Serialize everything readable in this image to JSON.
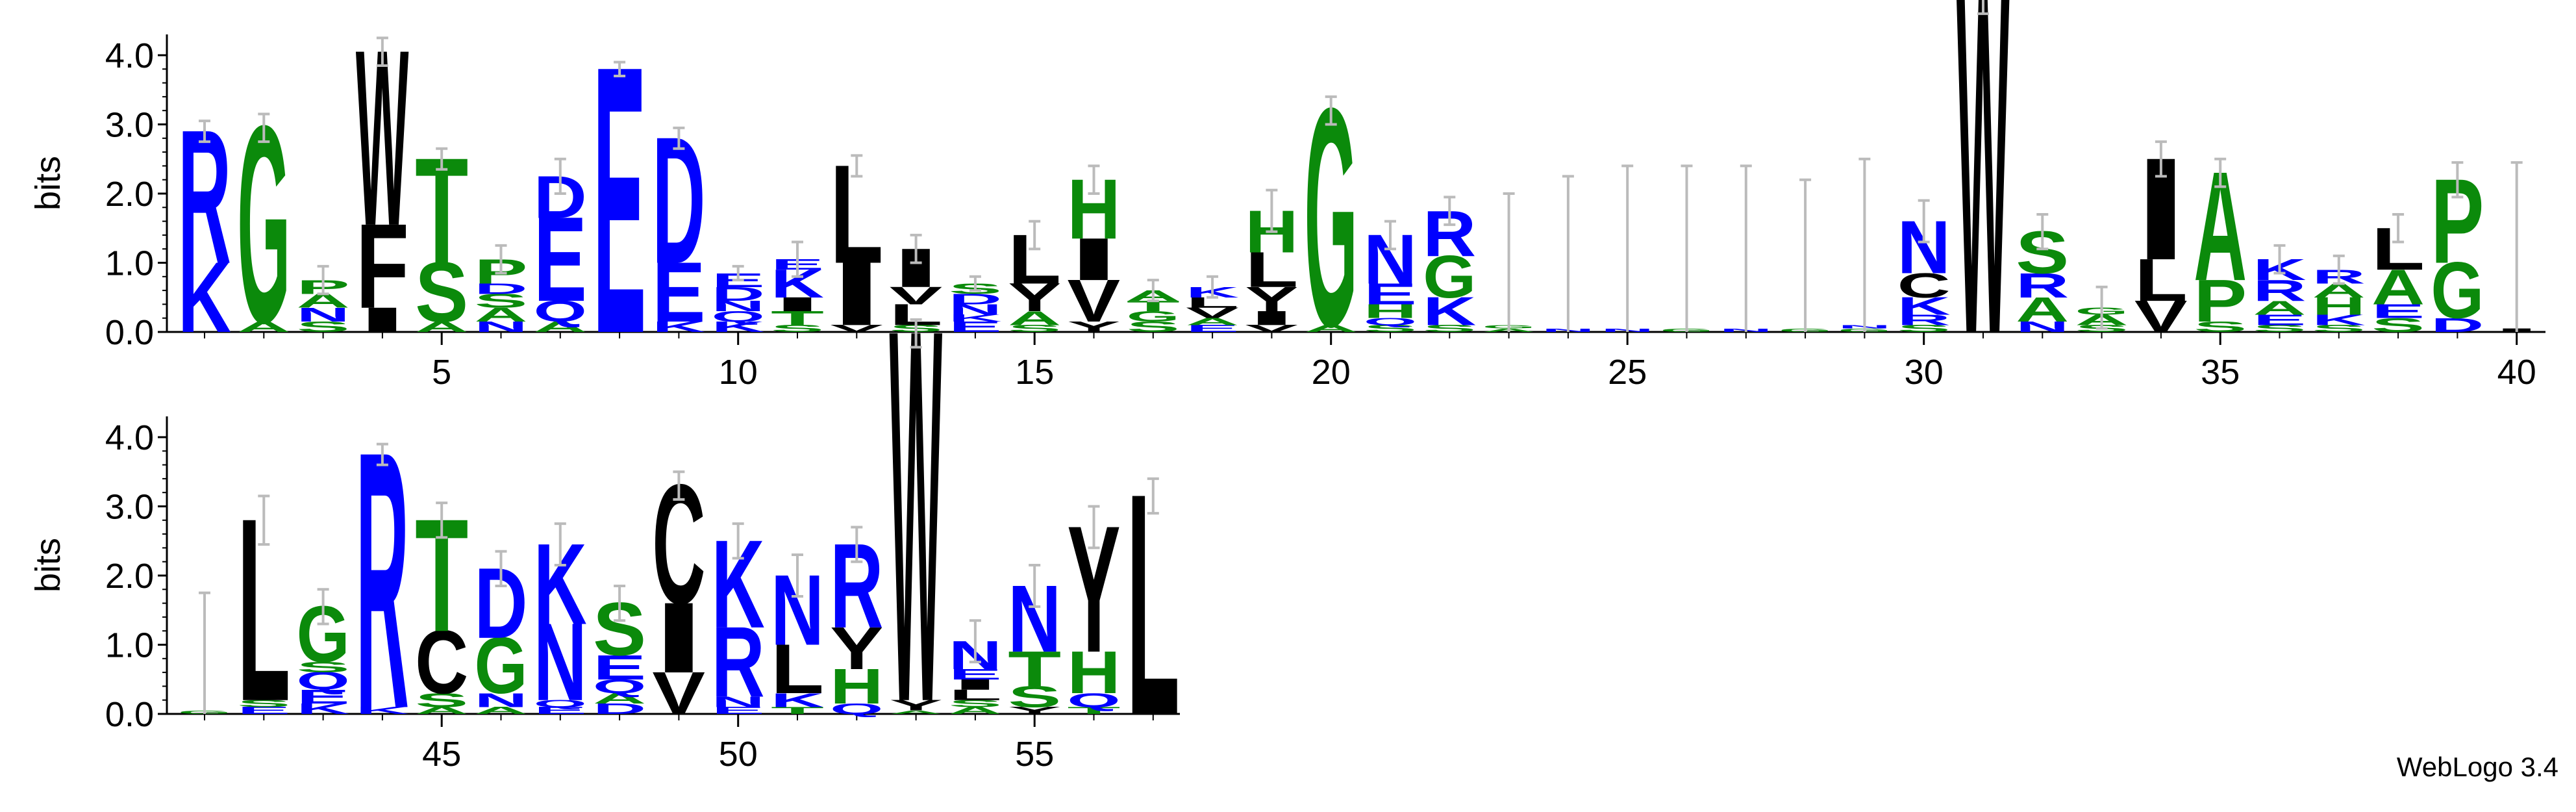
{
  "chart_data": [
    {
      "type": "logo",
      "ylabel": "bits",
      "x": [
        1,
        2,
        3,
        4,
        5,
        6,
        7,
        8,
        9,
        10,
        11,
        12,
        13,
        14,
        15,
        16,
        17,
        18,
        19,
        20,
        21,
        22,
        23,
        24,
        25,
        26,
        27,
        28,
        29,
        30,
        31,
        32,
        33,
        34,
        35,
        36,
        37,
        38,
        39,
        40
      ],
      "xticks": [
        5,
        10,
        15,
        20,
        25,
        30,
        35,
        40
      ],
      "ylim": [
        0,
        4.3
      ],
      "yticks": [
        {
          "value": 0,
          "label": "0.0"
        },
        {
          "value": 1,
          "label": "1.0"
        },
        {
          "value": 2,
          "label": "2.0"
        },
        {
          "value": 3,
          "label": "3.0"
        },
        {
          "value": 4,
          "label": "4.0"
        }
      ],
      "stacks": [
        [
          {
            "letter": "K",
            "bits": 1.0
          },
          {
            "letter": "R",
            "bits": 1.9
          }
        ],
        [
          {
            "letter": "A",
            "bits": 0.15
          },
          {
            "letter": "G",
            "bits": 2.8
          }
        ],
        [
          {
            "letter": "S",
            "bits": 0.15
          },
          {
            "letter": "N",
            "bits": 0.2
          },
          {
            "letter": "A",
            "bits": 0.2
          },
          {
            "letter": "P",
            "bits": 0.2
          }
        ],
        [
          {
            "letter": "I",
            "bits": 0.35
          },
          {
            "letter": "F",
            "bits": 1.2
          },
          {
            "letter": "W",
            "bits": 2.5
          }
        ],
        [
          {
            "letter": "A",
            "bits": 0.15
          },
          {
            "letter": "S",
            "bits": 0.85
          },
          {
            "letter": "T",
            "bits": 1.5
          }
        ],
        [
          {
            "letter": "N",
            "bits": 0.15
          },
          {
            "letter": "A",
            "bits": 0.2
          },
          {
            "letter": "S",
            "bits": 0.2
          },
          {
            "letter": "D",
            "bits": 0.15
          },
          {
            "letter": "P",
            "bits": 0.35
          }
        ],
        [
          {
            "letter": "A",
            "bits": 0.15
          },
          {
            "letter": "Q",
            "bits": 0.3
          },
          {
            "letter": "E",
            "bits": 1.2
          },
          {
            "letter": "D",
            "bits": 0.6
          }
        ],
        [
          {
            "letter": "E",
            "bits": 3.8
          }
        ],
        [
          {
            "letter": "K",
            "bits": 0.15
          },
          {
            "letter": "E",
            "bits": 0.85
          },
          {
            "letter": "D",
            "bits": 1.8
          }
        ],
        [
          {
            "letter": "K",
            "bits": 0.15
          },
          {
            "letter": "Q",
            "bits": 0.15
          },
          {
            "letter": "N",
            "bits": 0.15
          },
          {
            "letter": "D",
            "bits": 0.2
          },
          {
            "letter": "E",
            "bits": 0.2
          }
        ],
        [
          {
            "letter": "S",
            "bits": 0.1
          },
          {
            "letter": "T",
            "bits": 0.2
          },
          {
            "letter": "I",
            "bits": 0.2
          },
          {
            "letter": "K",
            "bits": 0.4
          },
          {
            "letter": "E",
            "bits": 0.15
          }
        ],
        [
          {
            "letter": "V",
            "bits": 0.1
          },
          {
            "letter": "I",
            "bits": 0.9
          },
          {
            "letter": "L",
            "bits": 1.4
          }
        ],
        [
          {
            "letter": "S",
            "bits": 0.1
          },
          {
            "letter": "L",
            "bits": 0.3
          },
          {
            "letter": "V",
            "bits": 0.25
          },
          {
            "letter": "I",
            "bits": 0.55
          }
        ],
        [
          {
            "letter": "E",
            "bits": 0.15
          },
          {
            "letter": "K",
            "bits": 0.1
          },
          {
            "letter": "N",
            "bits": 0.15
          },
          {
            "letter": "D",
            "bits": 0.15
          },
          {
            "letter": "S",
            "bits": 0.15
          }
        ],
        [
          {
            "letter": "S",
            "bits": 0.1
          },
          {
            "letter": "A",
            "bits": 0.2
          },
          {
            "letter": "Y",
            "bits": 0.4
          },
          {
            "letter": "L",
            "bits": 0.7
          }
        ],
        [
          {
            "letter": "Y",
            "bits": 0.15
          },
          {
            "letter": "V",
            "bits": 0.6
          },
          {
            "letter": "I",
            "bits": 0.6
          },
          {
            "letter": "H",
            "bits": 0.85
          }
        ],
        [
          {
            "letter": "S",
            "bits": 0.15
          },
          {
            "letter": "G",
            "bits": 0.15
          },
          {
            "letter": "T",
            "bits": 0.15
          },
          {
            "letter": "A",
            "bits": 0.15
          }
        ],
        [
          {
            "letter": "E",
            "bits": 0.1
          },
          {
            "letter": "A",
            "bits": 0.1
          },
          {
            "letter": "V",
            "bits": 0.15
          },
          {
            "letter": "L",
            "bits": 0.15
          },
          {
            "letter": "K",
            "bits": 0.15
          }
        ],
        [
          {
            "letter": "V",
            "bits": 0.1
          },
          {
            "letter": "I",
            "bits": 0.2
          },
          {
            "letter": "Y",
            "bits": 0.35
          },
          {
            "letter": "L",
            "bits": 0.5
          },
          {
            "letter": "H",
            "bits": 0.6
          }
        ],
        [
          {
            "letter": "A",
            "bits": 0.1
          },
          {
            "letter": "G",
            "bits": 3.1
          }
        ],
        [
          {
            "letter": "S",
            "bits": 0.1
          },
          {
            "letter": "Q",
            "bits": 0.1
          },
          {
            "letter": "H",
            "bits": 0.2
          },
          {
            "letter": "E",
            "bits": 0.3
          },
          {
            "letter": "N",
            "bits": 0.7
          }
        ],
        [
          {
            "letter": "S",
            "bits": 0.1
          },
          {
            "letter": "K",
            "bits": 0.4
          },
          {
            "letter": "G",
            "bits": 0.6
          },
          {
            "letter": "R",
            "bits": 0.65
          }
        ],
        [
          {
            "letter": "A",
            "bits": 0.05
          },
          {
            "letter": "G",
            "bits": 0.05
          }
        ],
        [
          {
            "letter": "N",
            "bits": 0.05
          }
        ],
        [
          {
            "letter": "N",
            "bits": 0.05
          }
        ],
        [
          {
            "letter": "G",
            "bits": 0.05
          }
        ],
        [
          {
            "letter": "N",
            "bits": 0.05
          }
        ],
        [
          {
            "letter": "G",
            "bits": 0.05
          }
        ],
        [
          {
            "letter": "G",
            "bits": 0.05
          },
          {
            "letter": "N",
            "bits": 0.05
          }
        ],
        [
          {
            "letter": "S",
            "bits": 0.1
          },
          {
            "letter": "R",
            "bits": 0.15
          },
          {
            "letter": "K",
            "bits": 0.25
          },
          {
            "letter": "C",
            "bits": 0.35
          },
          {
            "letter": "N",
            "bits": 0.75
          }
        ],
        [
          {
            "letter": "W",
            "bits": 4.8
          }
        ],
        [
          {
            "letter": "N",
            "bits": 0.15
          },
          {
            "letter": "A",
            "bits": 0.35
          },
          {
            "letter": "R",
            "bits": 0.35
          },
          {
            "letter": "S",
            "bits": 0.6
          }
        ],
        [
          {
            "letter": "S",
            "bits": 0.1
          },
          {
            "letter": "A",
            "bits": 0.15
          },
          {
            "letter": "G",
            "bits": 0.1
          }
        ],
        [
          {
            "letter": "V",
            "bits": 0.45
          },
          {
            "letter": "L",
            "bits": 0.6
          },
          {
            "letter": "I",
            "bits": 1.45
          }
        ],
        [
          {
            "letter": "S",
            "bits": 0.15
          },
          {
            "letter": "P",
            "bits": 0.6
          },
          {
            "letter": "A",
            "bits": 1.55
          }
        ],
        [
          {
            "letter": "S",
            "bits": 0.1
          },
          {
            "letter": "E",
            "bits": 0.15
          },
          {
            "letter": "A",
            "bits": 0.2
          },
          {
            "letter": "R",
            "bits": 0.3
          },
          {
            "letter": "K",
            "bits": 0.3
          }
        ],
        [
          {
            "letter": "S",
            "bits": 0.1
          },
          {
            "letter": "K",
            "bits": 0.15
          },
          {
            "letter": "H",
            "bits": 0.25
          },
          {
            "letter": "A",
            "bits": 0.2
          },
          {
            "letter": "R",
            "bits": 0.2
          }
        ],
        [
          {
            "letter": "S",
            "bits": 0.2
          },
          {
            "letter": "E",
            "bits": 0.2
          },
          {
            "letter": "A",
            "bits": 0.5
          },
          {
            "letter": "L",
            "bits": 0.6
          }
        ],
        [
          {
            "letter": "D",
            "bits": 0.2
          },
          {
            "letter": "G",
            "bits": 0.8
          },
          {
            "letter": "P",
            "bits": 1.2
          }
        ],
        [
          {
            "letter": "I",
            "bits": 0.05
          }
        ]
      ],
      "errors": [
        0.15,
        0.2,
        0.2,
        0.2,
        0.15,
        0.2,
        0.25,
        0.1,
        0.15,
        0.1,
        0.25,
        0.15,
        0.2,
        0.1,
        0.2,
        0.2,
        0.15,
        0.15,
        0.3,
        0.2,
        0.2,
        0.2,
        1.9,
        2.2,
        2.35,
        2.35,
        2.35,
        2.15,
        2.4,
        0.3,
        0.2,
        0.25,
        0.3,
        0.25,
        0.2,
        0.2,
        0.2,
        0.2,
        0.25,
        2.4
      ]
    },
    {
      "type": "logo",
      "ylabel": "bits",
      "x": [
        41,
        42,
        43,
        44,
        45,
        46,
        47,
        48,
        49,
        50,
        51,
        52,
        53,
        54,
        55,
        56,
        57
      ],
      "xticks": [
        45,
        50,
        55
      ],
      "ylim": [
        0,
        4.3
      ],
      "yticks": [
        {
          "value": 0,
          "label": "0.0"
        },
        {
          "value": 1,
          "label": "1.0"
        },
        {
          "value": 2,
          "label": "2.0"
        },
        {
          "value": 3,
          "label": "3.0"
        },
        {
          "value": 4,
          "label": "4.0"
        }
      ],
      "stacks": [
        [
          {
            "letter": "G",
            "bits": 0.05
          }
        ],
        [
          {
            "letter": "E",
            "bits": 0.1
          },
          {
            "letter": "S",
            "bits": 0.1
          },
          {
            "letter": "L",
            "bits": 2.6
          }
        ],
        [
          {
            "letter": "K",
            "bits": 0.15
          },
          {
            "letter": "E",
            "bits": 0.2
          },
          {
            "letter": "Q",
            "bits": 0.25
          },
          {
            "letter": "S",
            "bits": 0.15
          },
          {
            "letter": "G",
            "bits": 0.8
          }
        ],
        [
          {
            "letter": "K",
            "bits": 0.1
          },
          {
            "letter": "R",
            "bits": 3.65
          }
        ],
        [
          {
            "letter": "A",
            "bits": 0.1
          },
          {
            "letter": "S",
            "bits": 0.2
          },
          {
            "letter": "C",
            "bits": 0.9
          },
          {
            "letter": "T",
            "bits": 1.6
          }
        ],
        [
          {
            "letter": "A",
            "bits": 0.1
          },
          {
            "letter": "N",
            "bits": 0.2
          },
          {
            "letter": "G",
            "bits": 0.8
          },
          {
            "letter": "D",
            "bits": 1.0
          }
        ],
        [
          {
            "letter": "E",
            "bits": 0.1
          },
          {
            "letter": "Q",
            "bits": 0.1
          },
          {
            "letter": "N",
            "bits": 1.1
          },
          {
            "letter": "K",
            "bits": 1.15
          }
        ],
        [
          {
            "letter": "D",
            "bits": 0.15
          },
          {
            "letter": "A",
            "bits": 0.15
          },
          {
            "letter": "Q",
            "bits": 0.2
          },
          {
            "letter": "E",
            "bits": 0.35
          },
          {
            "letter": "S",
            "bits": 0.75
          }
        ],
        [
          {
            "letter": "V",
            "bits": 0.6
          },
          {
            "letter": "I",
            "bits": 1.0
          },
          {
            "letter": "C",
            "bits": 1.7
          }
        ],
        [
          {
            "letter": "E",
            "bits": 0.1
          },
          {
            "letter": "N",
            "bits": 0.15
          },
          {
            "letter": "R",
            "bits": 1.0
          },
          {
            "letter": "K",
            "bits": 1.25
          }
        ],
        [
          {
            "letter": "T",
            "bits": 0.1
          },
          {
            "letter": "K",
            "bits": 0.2
          },
          {
            "letter": "L",
            "bits": 0.7
          },
          {
            "letter": "N",
            "bits": 1.0
          }
        ],
        [
          {
            "letter": "Q",
            "bits": 0.15
          },
          {
            "letter": "H",
            "bits": 0.5
          },
          {
            "letter": "Y",
            "bits": 0.6
          },
          {
            "letter": "R",
            "bits": 1.2
          }
        ],
        [
          {
            "letter": "A",
            "bits": 0.05
          },
          {
            "letter": "Y",
            "bits": 0.15
          },
          {
            "letter": "W",
            "bits": 5.3
          }
        ],
        [
          {
            "letter": "A",
            "bits": 0.1
          },
          {
            "letter": "S",
            "bits": 0.1
          },
          {
            "letter": "L",
            "bits": 0.15
          },
          {
            "letter": "I",
            "bits": 0.15
          },
          {
            "letter": "E",
            "bits": 0.15
          },
          {
            "letter": "N",
            "bits": 0.4
          }
        ],
        [
          {
            "letter": "Y",
            "bits": 0.1
          },
          {
            "letter": "S",
            "bits": 0.3
          },
          {
            "letter": "T",
            "bits": 0.5
          },
          {
            "letter": "N",
            "bits": 0.95
          }
        ],
        [
          {
            "letter": "T",
            "bits": 0.1
          },
          {
            "letter": "Q",
            "bits": 0.2
          },
          {
            "letter": "H",
            "bits": 0.6
          },
          {
            "letter": "Y",
            "bits": 1.8
          }
        ],
        [
          {
            "letter": "L",
            "bits": 3.15
          }
        ]
      ],
      "errors": [
        1.7,
        0.35,
        0.25,
        0.15,
        0.25,
        0.25,
        0.3,
        0.25,
        0.2,
        0.25,
        0.3,
        0.25,
        0.2,
        0.3,
        0.3,
        0.3,
        0.25
      ]
    }
  ],
  "letter_colors": {
    "R": "#0000ff",
    "K": "#0000ff",
    "D": "#0000ff",
    "E": "#0000ff",
    "N": "#0000ff",
    "Q": "#0000ff",
    "G": "#0b8a0b",
    "S": "#0b8a0b",
    "T": "#0b8a0b",
    "H": "#0b8a0b",
    "A": "#0b8a0b",
    "P": "#0b8a0b",
    "W": "#000000",
    "F": "#000000",
    "L": "#000000",
    "I": "#000000",
    "V": "#000000",
    "Y": "#000000",
    "C": "#000000",
    "M": "#000000"
  },
  "error_color": "#bbbbbb",
  "footer": "WebLogo 3.4"
}
